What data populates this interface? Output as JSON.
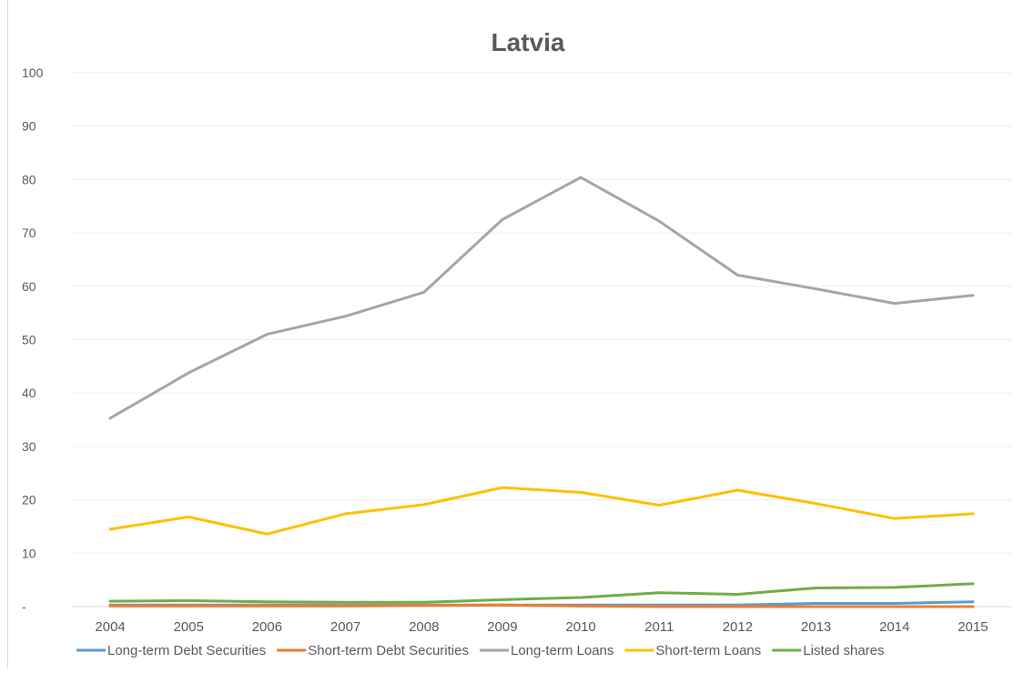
{
  "chart_data": {
    "type": "line",
    "title": "Latvia",
    "xlabel": "",
    "ylabel": "",
    "categories": [
      "2004",
      "2005",
      "2006",
      "2007",
      "2008",
      "2009",
      "2010",
      "2011",
      "2012",
      "2013",
      "2014",
      "2015"
    ],
    "ylim": [
      0,
      100
    ],
    "y_ticks": [
      {
        "value": 0,
        "label": "-"
      },
      {
        "value": 10,
        "label": "10"
      },
      {
        "value": 20,
        "label": "20"
      },
      {
        "value": 30,
        "label": "30"
      },
      {
        "value": 40,
        "label": "40"
      },
      {
        "value": 50,
        "label": "50"
      },
      {
        "value": 60,
        "label": "60"
      },
      {
        "value": 70,
        "label": "70"
      },
      {
        "value": 80,
        "label": "80"
      },
      {
        "value": 90,
        "label": "90"
      },
      {
        "value": 100,
        "label": "100"
      }
    ],
    "grid": true,
    "legend_position": "bottom",
    "series": [
      {
        "name": "Long-term Debt Securities",
        "color": "#5b9bd5",
        "values": [
          0.3,
          0.3,
          0.3,
          0.3,
          0.3,
          0.3,
          0.3,
          0.3,
          0.3,
          0.6,
          0.6,
          0.9
        ]
      },
      {
        "name": "Short-term Debt Securities",
        "color": "#ed7d31",
        "values": [
          0.1,
          0.1,
          0.1,
          0.1,
          0.2,
          0.3,
          0.1,
          0.0,
          0.0,
          0.0,
          0.0,
          0.0
        ]
      },
      {
        "name": "Long-term Loans",
        "color": "#a5a5a5",
        "values": [
          35.3,
          43.8,
          51.0,
          54.4,
          58.9,
          72.5,
          80.4,
          72.2,
          62.1,
          59.5,
          56.8,
          58.3
        ]
      },
      {
        "name": "Short-term Loans",
        "color": "#ffc000",
        "values": [
          14.5,
          16.8,
          13.6,
          17.4,
          19.1,
          22.3,
          21.4,
          19.0,
          21.8,
          19.3,
          16.5,
          17.4
        ]
      },
      {
        "name": "Listed shares",
        "color": "#70ad47",
        "values": [
          1.0,
          1.1,
          0.9,
          0.8,
          0.8,
          1.3,
          1.7,
          2.6,
          2.3,
          3.5,
          3.6,
          4.3
        ]
      }
    ]
  }
}
